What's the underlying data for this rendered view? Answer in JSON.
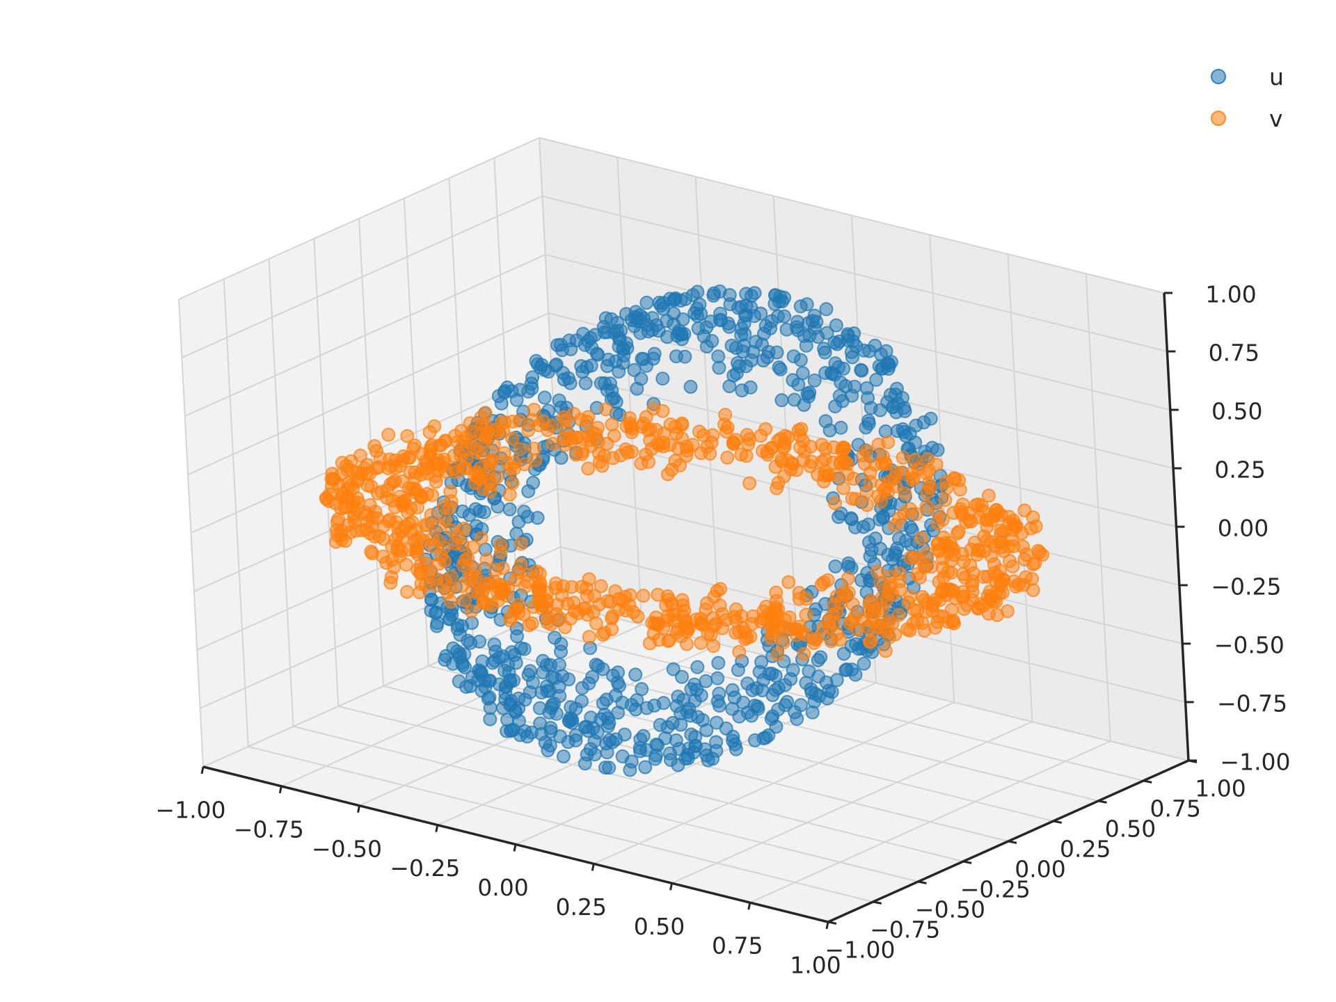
{
  "chart_data": {
    "type": "scatter",
    "projection": "3d",
    "grid": true,
    "legend_position": "top-right",
    "xlim": [
      -1.0,
      1.0
    ],
    "ylim": [
      -1.0,
      1.0
    ],
    "zlim": [
      -1.0,
      1.0
    ],
    "x_ticks": [
      "−1.00",
      "−0.75",
      "−0.50",
      "−0.25",
      "0.00",
      "0.25",
      "0.50",
      "0.75",
      "1.00"
    ],
    "y_ticks": [
      "−1.00",
      "−0.75",
      "−0.50",
      "−0.25",
      "0.00",
      "0.25",
      "0.50",
      "0.75",
      "1.00"
    ],
    "z_ticks": [
      "−1.00",
      "−0.75",
      "−0.50",
      "−0.25",
      "0.00",
      "0.25",
      "0.50",
      "0.75",
      "1.00"
    ],
    "tick_values": [
      -1.0,
      -0.75,
      -0.5,
      -0.25,
      0.0,
      0.25,
      0.5,
      0.75,
      1.0
    ],
    "series": [
      {
        "name": "u",
        "color": "#1f77b4",
        "description_of_shape": "points on an ellipse-shaped ring lying in a vertical plane",
        "point_count": 1000,
        "x_range": [
          -0.28,
          0.28
        ],
        "y_range": [
          -0.95,
          0.95
        ],
        "z_range": [
          -1.0,
          1.0
        ]
      },
      {
        "name": "v",
        "color": "#ff7f0e",
        "description_of_shape": "points on a flat horizontal ellipse-shaped ring",
        "point_count": 1000,
        "x_range": [
          -1.0,
          1.0
        ],
        "y_range": [
          -1.0,
          1.0
        ],
        "z_range": [
          -0.07,
          0.07
        ]
      }
    ]
  }
}
